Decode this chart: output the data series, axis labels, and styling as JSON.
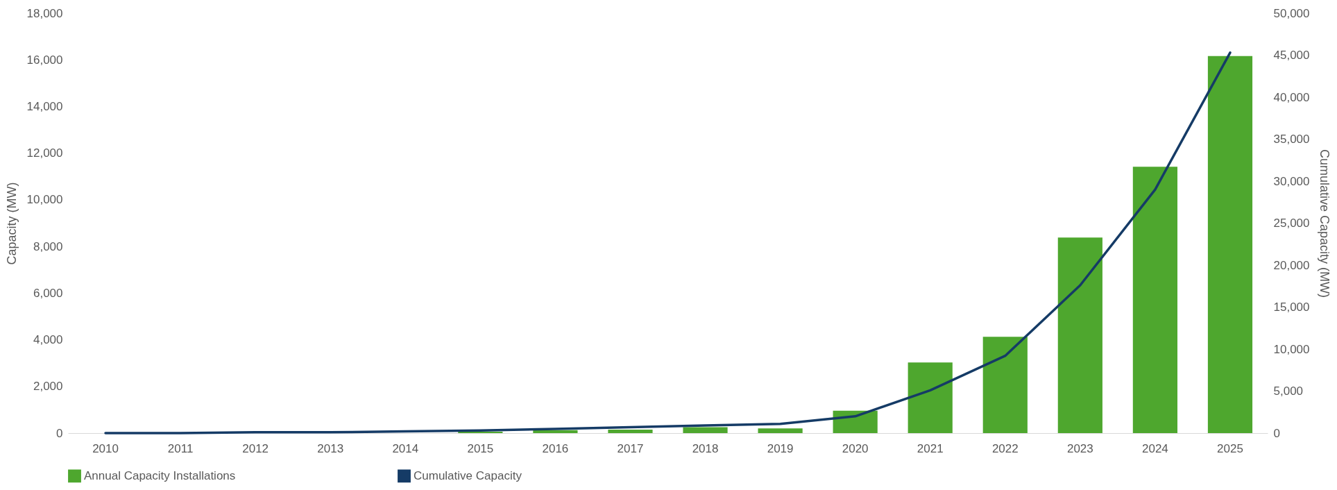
{
  "chart_data": {
    "type": "bar",
    "categories": [
      "2010",
      "2011",
      "2012",
      "2013",
      "2014",
      "2015",
      "2016",
      "2017",
      "2018",
      "2019",
      "2020",
      "2021",
      "2022",
      "2023",
      "2024",
      "2025"
    ],
    "ylabel": "Capacity (MW)",
    "y2label": "Cumulative Capacity (MW)",
    "ylim": [
      0,
      18000
    ],
    "yticks": [
      0,
      {
        "value": 2000,
        "label": "2,000"
      },
      {
        "value": 4000,
        "label": "4,000"
      },
      {
        "value": 6000,
        "label": "6,000"
      },
      {
        "value": 8000,
        "label": "8,000"
      },
      {
        "value": 10000,
        "label": "10,000"
      },
      {
        "value": 12000,
        "label": "12,000"
      },
      {
        "value": 14000,
        "label": "14,000"
      },
      {
        "value": 16000,
        "label": "16,000"
      },
      {
        "value": 18000,
        "label": "18,000"
      }
    ],
    "y2lim": [
      0,
      50000
    ],
    "y2ticks": [
      0,
      {
        "value": 5000,
        "label": "5,000"
      },
      {
        "value": 10000,
        "label": "10,000"
      },
      {
        "value": 15000,
        "label": "15,000"
      },
      {
        "value": 20000,
        "label": "20,000"
      },
      {
        "value": 25000,
        "label": "25,000"
      },
      {
        "value": 30000,
        "label": "30,000"
      },
      {
        "value": 35000,
        "label": "35,000"
      },
      {
        "value": 40000,
        "label": "40,000"
      },
      {
        "value": 45000,
        "label": "45,000"
      },
      {
        "value": 50000,
        "label": "50,000"
      }
    ],
    "series": [
      {
        "name": "Annual Capacity Installations",
        "color": "#4ea72e",
        "values": [
          null,
          null,
          null,
          null,
          null,
          60,
          130,
          150,
          250,
          200,
          960,
          3030,
          4130,
          8380,
          11420,
          16160
        ]
      },
      {
        "name": "Cumulative Capacity",
        "type": "line",
        "axis": "y2",
        "color": "#153b66",
        "values": [
          0,
          0,
          100,
          100,
          200,
          300,
          500,
          700,
          900,
          1100,
          2000,
          5100,
          9200,
          17600,
          29000,
          45300
        ]
      }
    ],
    "grid": false,
    "legend": "bottom",
    "marker": "none",
    "line_style": "solid"
  }
}
